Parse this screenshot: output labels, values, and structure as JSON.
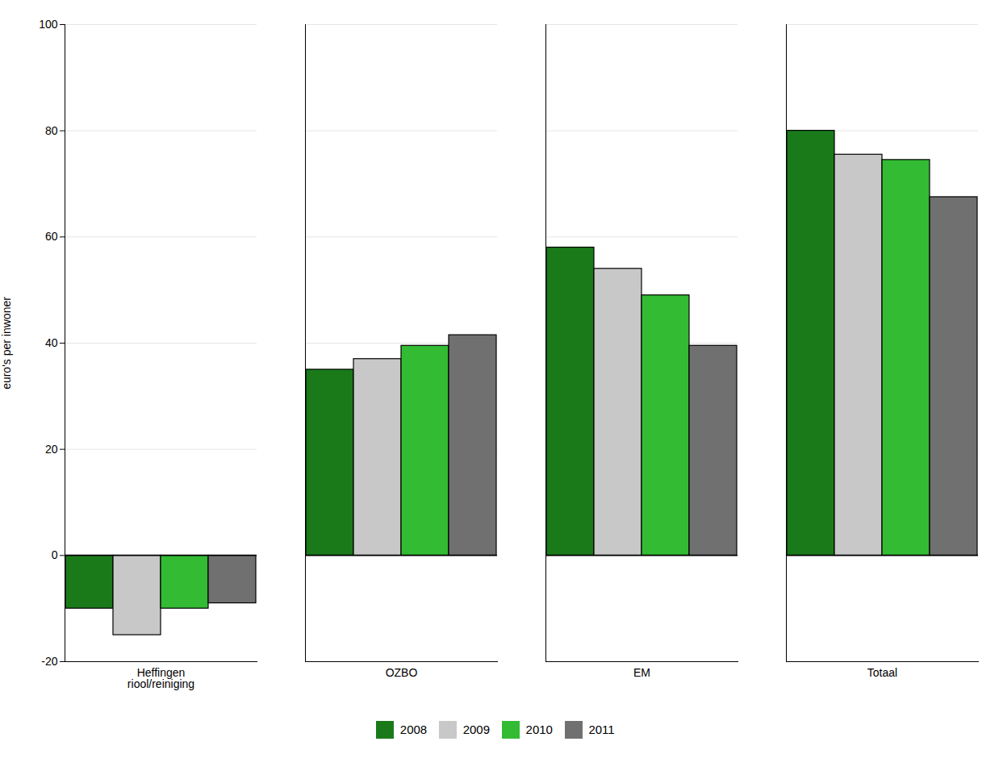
{
  "chart_data": {
    "type": "bar",
    "categories": [
      "Heffingen\nriool/reiniging",
      "OZBO",
      "EM",
      "Totaal"
    ],
    "series": [
      {
        "name": "2008",
        "color": "#1a7a1a",
        "values": [
          -10,
          35,
          58,
          80
        ]
      },
      {
        "name": "2009",
        "color": "#c8c8c8",
        "values": [
          -15,
          37,
          54,
          75.5
        ]
      },
      {
        "name": "2010",
        "color": "#33bb33",
        "values": [
          -10,
          39.5,
          49,
          74.5
        ]
      },
      {
        "name": "2011",
        "color": "#707070",
        "values": [
          -9,
          41.5,
          39.5,
          67.5
        ]
      }
    ],
    "ylabel": "euro's per inwoner",
    "ylim": [
      -20,
      100
    ],
    "yticks": [
      -20,
      0,
      20,
      40,
      60,
      80,
      100
    ],
    "grid": true,
    "legend": "bottom"
  }
}
